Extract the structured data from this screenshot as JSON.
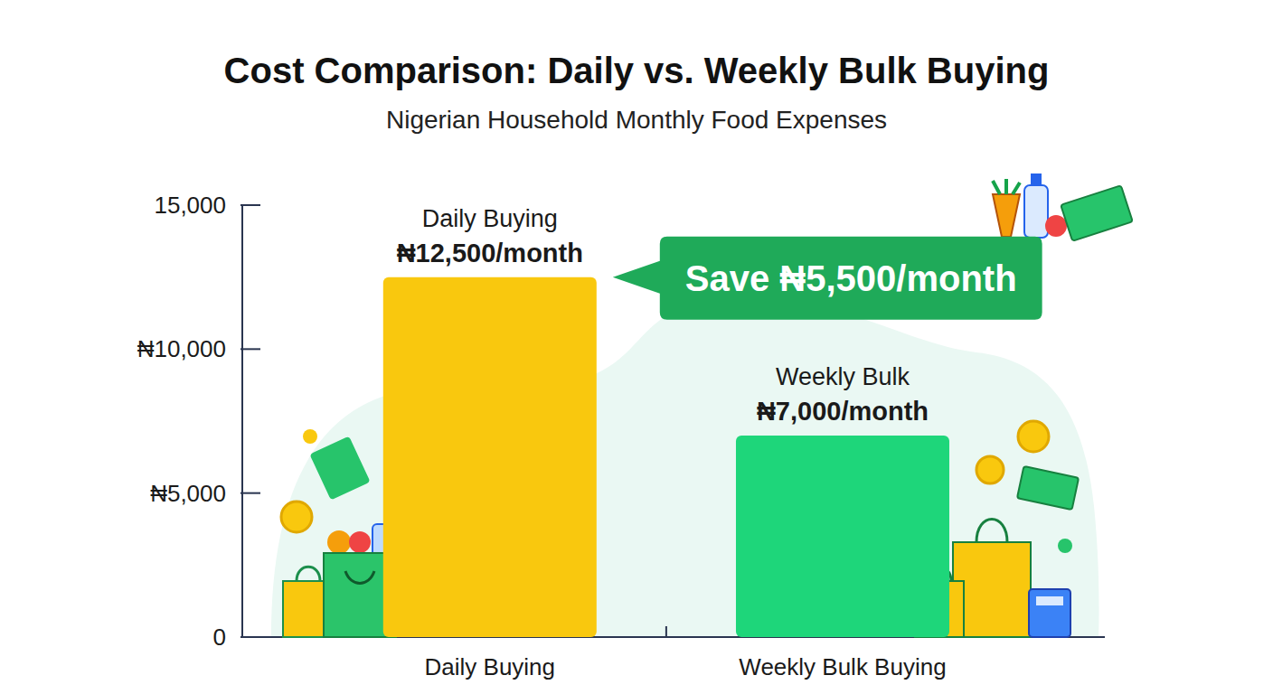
{
  "chart_data": {
    "type": "bar",
    "title": "Cost Comparison: Daily vs. Weekly Bulk Buying",
    "subtitle": "Nigerian Household Monthly Food Expenses",
    "categories": [
      "Daily Buying",
      "Weekly Bulk Buying"
    ],
    "values": [
      12500,
      7000
    ],
    "value_labels": [
      "₦12,500/month",
      "₦7,000/month"
    ],
    "value_label_titles": [
      "Daily Buying",
      "Weekly Bulk"
    ],
    "colors": [
      "#f9c80e",
      "#1ed67a"
    ],
    "data_labels": true,
    "ylim": [
      0,
      15000
    ],
    "yticks": [
      0,
      {
        "value": 5000,
        "label": "₦5,000"
      },
      {
        "value": 10000,
        "label": "₦10,000"
      },
      {
        "value": 15000,
        "label": "15,000"
      }
    ],
    "annotations": [
      {
        "text": "Save ₦5,500/month"
      }
    ]
  }
}
